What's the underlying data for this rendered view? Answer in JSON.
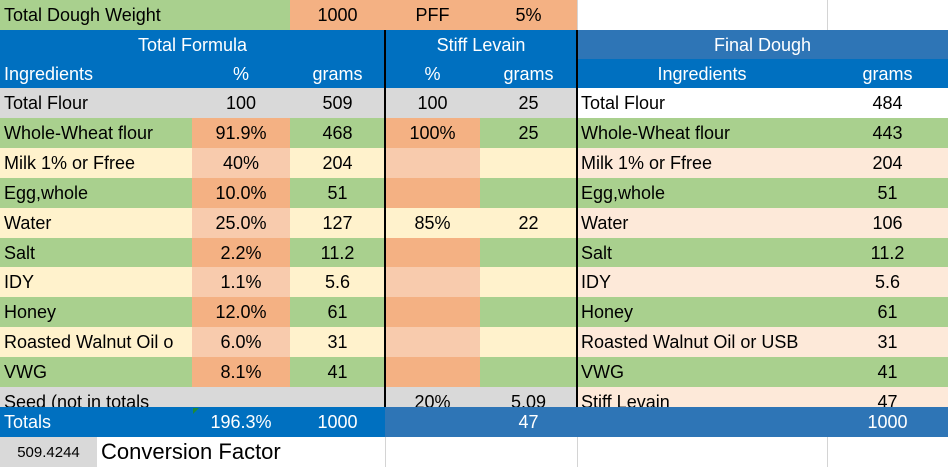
{
  "top_row": {
    "title": "Total Dough Weight",
    "weight": "1000",
    "pff_label": "PFF",
    "pff_value": "5%"
  },
  "section_headers": {
    "total_formula": "Total Formula",
    "stiff_levain": "Stiff Levain",
    "final_dough": "Final Dough"
  },
  "column_headers": {
    "ingredients": "Ingredients",
    "percent": "%",
    "grams": "grams",
    "levain_percent": "%",
    "levain_grams": "grams",
    "final_ingredients": "Ingredients",
    "final_grams": "grams"
  },
  "rows": [
    {
      "name": "Total Flour",
      "pct": "100",
      "grams": "509",
      "lv_pct": "100",
      "lv_grams": "25",
      "fd_name": "Total Flour",
      "fd_grams": "484"
    },
    {
      "name": "Whole-Wheat flour",
      "pct": "91.9%",
      "grams": "468",
      "lv_pct": "100%",
      "lv_grams": "25",
      "fd_name": "Whole-Wheat flour",
      "fd_grams": "443"
    },
    {
      "name": "Milk 1% or Ffree",
      "pct": "40%",
      "grams": "204",
      "lv_pct": "",
      "lv_grams": "",
      "fd_name": "Milk 1% or Ffree",
      "fd_grams": "204"
    },
    {
      "name": "Egg,whole",
      "pct": "10.0%",
      "grams": "51",
      "lv_pct": "",
      "lv_grams": "",
      "fd_name": "Egg,whole",
      "fd_grams": "51"
    },
    {
      "name": "Water",
      "pct": "25.0%",
      "grams": "127",
      "lv_pct": "85%",
      "lv_grams": "22",
      "fd_name": "Water",
      "fd_grams": "106"
    },
    {
      "name": "Salt",
      "pct": "2.2%",
      "grams": "11.2",
      "lv_pct": "",
      "lv_grams": "",
      "fd_name": "Salt",
      "fd_grams": "11.2"
    },
    {
      "name": "IDY",
      "pct": "1.1%",
      "grams": "5.6",
      "lv_pct": "",
      "lv_grams": "",
      "fd_name": "IDY",
      "fd_grams": "5.6"
    },
    {
      "name": "Honey",
      "pct": "12.0%",
      "grams": "61",
      "lv_pct": "",
      "lv_grams": "",
      "fd_name": "Honey",
      "fd_grams": "61"
    },
    {
      "name": "Roasted Walnut Oil o",
      "pct": "6.0%",
      "grams": "31",
      "lv_pct": "",
      "lv_grams": "",
      "fd_name": "Roasted Walnut Oil or USB",
      "fd_grams": "31"
    },
    {
      "name": "VWG",
      "pct": "8.1%",
      "grams": "41",
      "lv_pct": "",
      "lv_grams": "",
      "fd_name": "VWG",
      "fd_grams": "41"
    },
    {
      "name": "Seed (not in totals",
      "pct": "",
      "grams": "",
      "lv_pct": "20%",
      "lv_grams": "5.09",
      "fd_name": "Stiff Levain",
      "fd_grams": "47"
    }
  ],
  "totals": {
    "label": "Totals",
    "pct": "196.3%",
    "grams": "1000",
    "levain_grams": "47",
    "final_grams": "1000"
  },
  "footer": {
    "conversion_value": "509.4244",
    "conversion_label": "Conversion Factor"
  },
  "colors": {
    "blue": "#0070c0",
    "final_blue": "#2e75b6",
    "orange": "#f4b183",
    "light_orange": "#f8cbad",
    "green": "#a9d08e",
    "yellow": "#fff2cc",
    "gray": "#d9d9d9"
  }
}
